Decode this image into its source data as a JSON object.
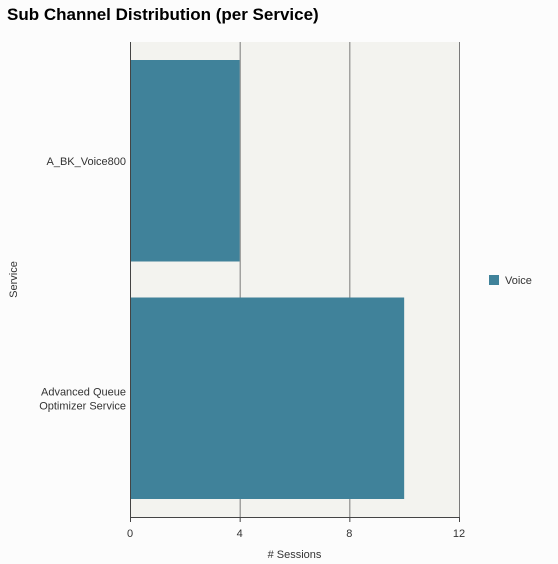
{
  "chart_data": {
    "type": "bar",
    "orientation": "horizontal",
    "title": "Sub Channel Distribution (per Service)",
    "xlabel": "# Sessions",
    "ylabel": "Service",
    "categories": [
      [
        "A_BK_Voice800"
      ],
      [
        "Advanced Queue",
        "Optimizer Service"
      ]
    ],
    "series": [
      {
        "name": "Voice",
        "color": "#40829a",
        "values": [
          4,
          10
        ]
      }
    ],
    "xlim": [
      0,
      12
    ],
    "xticks": [
      0,
      4,
      8,
      12
    ],
    "grid": true,
    "legend_position": "right",
    "colors": {
      "plot_background": "#f3f3ef",
      "grid": "#7a7a7a",
      "axis": "#444444",
      "text": "#333333"
    }
  }
}
